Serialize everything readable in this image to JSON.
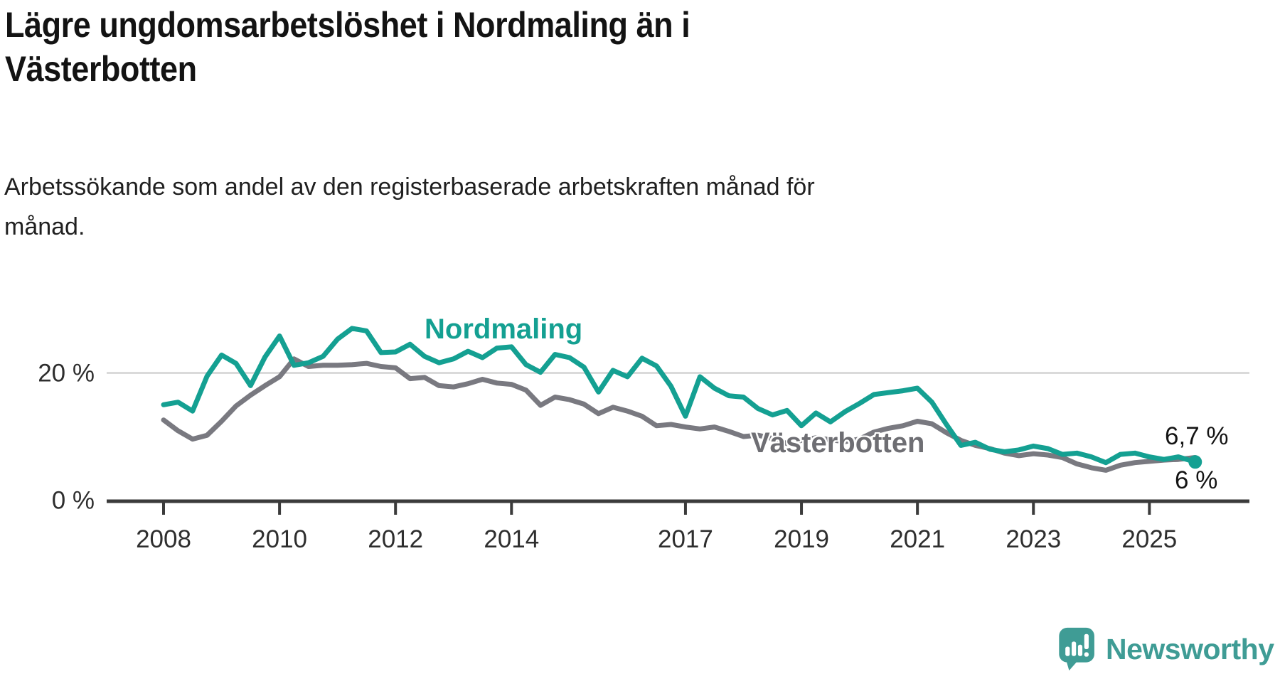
{
  "header": {
    "title_lines": [
      "Lägre ungdomsarbetslöshet i Nordmaling än i",
      "Västerbotten"
    ],
    "subtitle_lines": [
      "Arbetssökande som andel av den registerbaserade arbetskraften månad för",
      "månad."
    ]
  },
  "footer": {
    "brand": "Newsworthy",
    "logo_icon": "speech-bubble-bar-chart"
  },
  "colors": {
    "nordmaling": "#14a092",
    "vasterbotten": "#797980",
    "vasterbotten_label": "#6e6e73",
    "axis": "#3b3b3b",
    "gridline": "#dadada",
    "tick_text": "#2e2e2e",
    "brand_teal": "#3f9c95"
  },
  "chart_data": {
    "type": "line",
    "title": "Lägre ungdomsarbetslöshet i Nordmaling än i Västerbotten",
    "subtitle": "Arbetssökande som andel av den registerbaserade arbetskraften månad för månad.",
    "grid": "single horizontal gridline at 20 %",
    "legend_position": "inline labels on lines",
    "x_axis": {
      "unit": "year",
      "ticks": [
        2008,
        2010,
        2012,
        2014,
        2017,
        2019,
        2021,
        2023,
        2025
      ],
      "range": [
        2007.9,
        2026.7
      ]
    },
    "y_axis": {
      "unit": "%",
      "labels": [
        {
          "value": 20,
          "text": "20 %"
        },
        {
          "value": 0,
          "text": "0 %"
        }
      ],
      "range": [
        0,
        36
      ]
    },
    "x": [
      2008,
      2008.25,
      2008.5,
      2008.75,
      2009,
      2009.25,
      2009.5,
      2009.75,
      2010,
      2010.25,
      2010.5,
      2010.75,
      2011,
      2011.25,
      2011.5,
      2011.75,
      2012,
      2012.25,
      2012.5,
      2012.75,
      2013,
      2013.25,
      2013.5,
      2013.75,
      2014,
      2014.25,
      2014.5,
      2014.75,
      2015,
      2015.25,
      2015.5,
      2015.75,
      2016,
      2016.25,
      2016.5,
      2016.75,
      2017,
      2017.25,
      2017.5,
      2017.75,
      2018,
      2018.25,
      2018.5,
      2018.75,
      2019,
      2019.25,
      2019.5,
      2019.75,
      2020,
      2020.25,
      2020.5,
      2020.75,
      2021,
      2021.25,
      2021.5,
      2021.75,
      2022,
      2022.25,
      2022.5,
      2022.75,
      2023,
      2023.25,
      2023.5,
      2023.75,
      2024,
      2024.25,
      2024.5,
      2024.75,
      2025,
      2025.25,
      2025.5,
      2025.79
    ],
    "series": [
      {
        "name": "Västerbotten",
        "color": "#797980",
        "end_label": "6,7 %",
        "end_value": 6.7,
        "end_dot": false,
        "values": [
          12.6,
          10.9,
          9.6,
          10.2,
          12.4,
          14.8,
          16.5,
          18.0,
          19.4,
          22.2,
          21.0,
          21.2,
          21.2,
          21.3,
          21.5,
          21.0,
          20.8,
          19.1,
          19.3,
          18.0,
          17.8,
          18.3,
          19.0,
          18.4,
          18.2,
          17.3,
          14.9,
          16.2,
          15.8,
          15.1,
          13.6,
          14.6,
          14.0,
          13.2,
          11.7,
          11.9,
          11.5,
          11.2,
          11.5,
          10.8,
          10.0,
          10.2,
          9.7,
          8.9,
          9.4,
          9.8,
          9.5,
          9.2,
          9.6,
          10.7,
          11.3,
          11.7,
          12.4,
          12.0,
          10.6,
          9.4,
          8.6,
          8.1,
          7.4,
          7.0,
          7.3,
          7.1,
          6.7,
          5.7,
          5.1,
          4.7,
          5.5,
          5.9,
          6.1,
          6.3,
          6.4,
          6.7
        ]
      },
      {
        "name": "Nordmaling",
        "color": "#14a092",
        "end_label": "6 %",
        "end_value": 6.0,
        "end_dot": true,
        "values": [
          15.0,
          15.4,
          14.0,
          19.5,
          22.8,
          21.5,
          18.0,
          22.5,
          25.8,
          21.2,
          21.6,
          22.6,
          25.3,
          27.0,
          26.6,
          23.2,
          23.3,
          24.5,
          22.6,
          21.6,
          22.2,
          23.4,
          22.4,
          23.9,
          24.1,
          21.3,
          20.1,
          22.9,
          22.4,
          20.9,
          17.0,
          20.4,
          19.4,
          22.3,
          21.1,
          17.9,
          13.2,
          19.4,
          17.6,
          16.4,
          16.2,
          14.4,
          13.4,
          14.1,
          11.7,
          13.7,
          12.3,
          13.9,
          15.2,
          16.6,
          16.9,
          17.2,
          17.6,
          15.4,
          11.9,
          8.6,
          9.1,
          8.0,
          7.6,
          7.9,
          8.5,
          8.1,
          7.2,
          7.4,
          6.8,
          5.9,
          7.2,
          7.4,
          6.8,
          6.4,
          6.8,
          6.0
        ]
      }
    ]
  }
}
